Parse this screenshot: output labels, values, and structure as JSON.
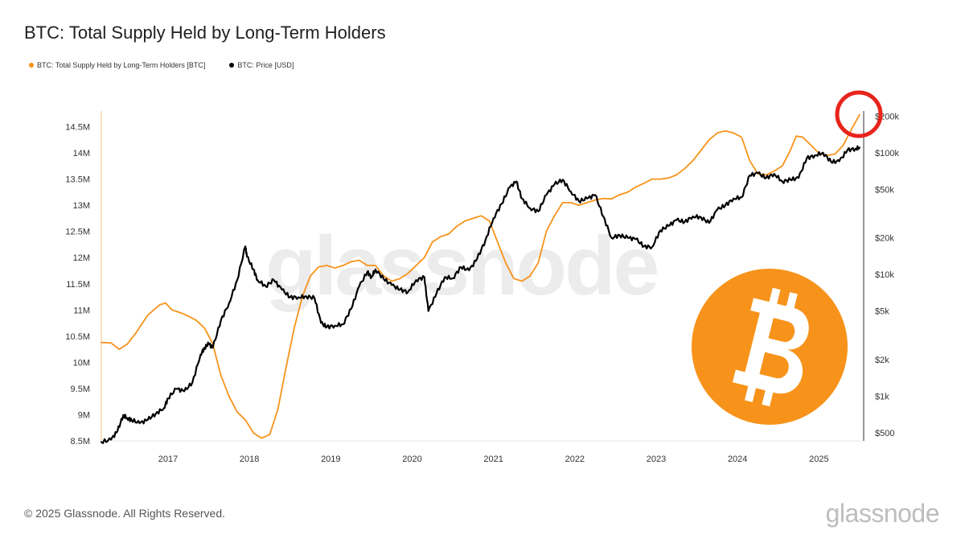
{
  "title": "BTC: Total Supply Held by Long-Term Holders",
  "footer": "© 2025 Glassnode. All Rights Reserved.",
  "brand": "glassnode",
  "watermark": "glassnode",
  "colors": {
    "lth": "#f7931a",
    "price": "#000000",
    "circle": "#e8241c",
    "bitcoin": "#f7931a"
  },
  "chart_data": {
    "type": "line",
    "title": "BTC: Total Supply Held by Long-Term Holders",
    "legend_position": "top-left",
    "grid": false,
    "x_ticks": [
      2017,
      2018,
      2019,
      2020,
      2021,
      2022,
      2023,
      2024,
      2025
    ],
    "x_tick_labels": [
      "2017",
      "2018",
      "2019",
      "2020",
      "2021",
      "2022",
      "2023",
      "2024",
      "2025"
    ],
    "xlim": [
      2016.18,
      2025.55
    ],
    "y_left": {
      "ylim": [
        8500000,
        14800000
      ],
      "ticks": [
        8500000,
        9000000,
        9500000,
        10000000,
        10500000,
        11000000,
        11500000,
        12000000,
        12500000,
        13000000,
        13500000,
        14000000,
        14500000
      ],
      "tick_labels": [
        "8.5M",
        "9M",
        "9.5M",
        "10M",
        "10.5M",
        "11M",
        "11.5M",
        "12M",
        "12.5M",
        "13M",
        "13.5M",
        "14M",
        "14.5M"
      ]
    },
    "y_right": {
      "scale": "log",
      "ylim": [
        430,
        220000
      ],
      "ticks": [
        500,
        1000,
        2000,
        5000,
        10000,
        20000,
        50000,
        100000,
        200000
      ],
      "tick_labels": [
        "$500",
        "$1k",
        "$2k",
        "$5k",
        "$10k",
        "$20k",
        "$50k",
        "$100k",
        "$200k"
      ]
    },
    "series": [
      {
        "name": "BTC: Total Supply Held by Long-Term Holders [BTC]",
        "axis": "left",
        "color": "#f7931a",
        "x": [
          2016.18,
          2016.3,
          2016.4,
          2016.5,
          2016.6,
          2016.75,
          2016.9,
          2016.97,
          2017.05,
          2017.15,
          2017.25,
          2017.35,
          2017.45,
          2017.55,
          2017.65,
          2017.75,
          2017.85,
          2017.95,
          2018.05,
          2018.15,
          2018.25,
          2018.35,
          2018.45,
          2018.55,
          2018.65,
          2018.75,
          2018.85,
          2018.95,
          2019.05,
          2019.15,
          2019.25,
          2019.35,
          2019.45,
          2019.55,
          2019.65,
          2019.75,
          2019.85,
          2019.95,
          2020.05,
          2020.15,
          2020.25,
          2020.35,
          2020.45,
          2020.55,
          2020.65,
          2020.75,
          2020.85,
          2020.95,
          2021.05,
          2021.15,
          2021.25,
          2021.35,
          2021.45,
          2021.55,
          2021.65,
          2021.75,
          2021.85,
          2021.95,
          2022.05,
          2022.15,
          2022.25,
          2022.35,
          2022.45,
          2022.55,
          2022.65,
          2022.75,
          2022.85,
          2022.95,
          2023.05,
          2023.15,
          2023.25,
          2023.35,
          2023.45,
          2023.55,
          2023.65,
          2023.75,
          2023.85,
          2023.95,
          2024.05,
          2024.15,
          2024.25,
          2024.35,
          2024.45,
          2024.55,
          2024.65,
          2024.72,
          2024.8,
          2024.9,
          2025.0,
          2025.1,
          2025.2,
          2025.3,
          2025.4,
          2025.5
        ],
        "values": [
          10380000,
          10370000,
          10250000,
          10350000,
          10550000,
          10900000,
          11100000,
          11130000,
          11000000,
          10950000,
          10880000,
          10800000,
          10650000,
          10350000,
          9750000,
          9350000,
          9050000,
          8900000,
          8650000,
          8550000,
          8620000,
          9100000,
          9900000,
          10650000,
          11250000,
          11650000,
          11820000,
          11850000,
          11800000,
          11850000,
          11920000,
          11950000,
          11850000,
          11850000,
          11650000,
          11550000,
          11600000,
          11700000,
          11850000,
          12000000,
          12300000,
          12400000,
          12450000,
          12600000,
          12700000,
          12750000,
          12800000,
          12700000,
          12300000,
          11900000,
          11600000,
          11550000,
          11650000,
          11900000,
          12500000,
          12800000,
          13050000,
          13050000,
          13000000,
          13050000,
          13100000,
          13130000,
          13120000,
          13200000,
          13250000,
          13350000,
          13420000,
          13500000,
          13500000,
          13520000,
          13580000,
          13700000,
          13850000,
          14050000,
          14250000,
          14380000,
          14420000,
          14380000,
          14300000,
          13850000,
          13600000,
          13580000,
          13650000,
          13750000,
          14050000,
          14320000,
          14300000,
          14150000,
          13990000,
          13950000,
          13980000,
          14150000,
          14450000,
          14730000
        ]
      },
      {
        "name": "BTC: Price [USD]",
        "axis": "right",
        "color": "#000000",
        "x": [
          2016.18,
          2016.3,
          2016.38,
          2016.45,
          2016.5,
          2016.55,
          2016.65,
          2016.75,
          2016.85,
          2016.95,
          2017.0,
          2017.1,
          2017.2,
          2017.3,
          2017.4,
          2017.45,
          2017.5,
          2017.55,
          2017.65,
          2017.75,
          2017.85,
          2017.95,
          2017.97,
          2018.05,
          2018.1,
          2018.2,
          2018.3,
          2018.4,
          2018.5,
          2018.6,
          2018.7,
          2018.8,
          2018.88,
          2018.95,
          2019.05,
          2019.15,
          2019.25,
          2019.35,
          2019.45,
          2019.5,
          2019.55,
          2019.65,
          2019.75,
          2019.85,
          2019.95,
          2020.05,
          2020.15,
          2020.2,
          2020.3,
          2020.4,
          2020.5,
          2020.6,
          2020.7,
          2020.8,
          2020.9,
          2021.0,
          2021.1,
          2021.2,
          2021.28,
          2021.35,
          2021.45,
          2021.55,
          2021.65,
          2021.75,
          2021.85,
          2021.95,
          2022.05,
          2022.15,
          2022.25,
          2022.35,
          2022.45,
          2022.55,
          2022.65,
          2022.75,
          2022.85,
          2022.95,
          2023.05,
          2023.15,
          2023.25,
          2023.35,
          2023.45,
          2023.55,
          2023.65,
          2023.75,
          2023.85,
          2023.95,
          2024.05,
          2024.15,
          2024.25,
          2024.35,
          2024.45,
          2024.55,
          2024.65,
          2024.75,
          2024.85,
          2024.95,
          2025.05,
          2025.15,
          2025.25,
          2025.35,
          2025.45,
          2025.5
        ],
        "values": [
          420,
          440,
          520,
          700,
          660,
          640,
          600,
          640,
          720,
          800,
          960,
          1150,
          1100,
          1300,
          2200,
          2500,
          2700,
          2500,
          4200,
          5800,
          9000,
          17000,
          14000,
          11000,
          9000,
          8000,
          9000,
          7500,
          6500,
          6500,
          6600,
          6400,
          4000,
          3700,
          3800,
          3900,
          5200,
          8000,
          10500,
          9500,
          11000,
          9200,
          8200,
          7500,
          7200,
          9000,
          9500,
          5000,
          7000,
          9500,
          9300,
          11500,
          10800,
          13500,
          19000,
          29000,
          38000,
          52000,
          58000,
          42000,
          35000,
          33000,
          45000,
          55000,
          60000,
          48000,
          40000,
          42000,
          45000,
          30000,
          20000,
          21000,
          20000,
          19500,
          17000,
          16800,
          23000,
          25000,
          28000,
          27000,
          30000,
          29500,
          26500,
          34000,
          37000,
          42000,
          43000,
          65000,
          68000,
          62000,
          67000,
          58000,
          60000,
          62000,
          90000,
          95000,
          100000,
          84000,
          85000,
          105000,
          108000,
          110000
        ]
      }
    ]
  }
}
